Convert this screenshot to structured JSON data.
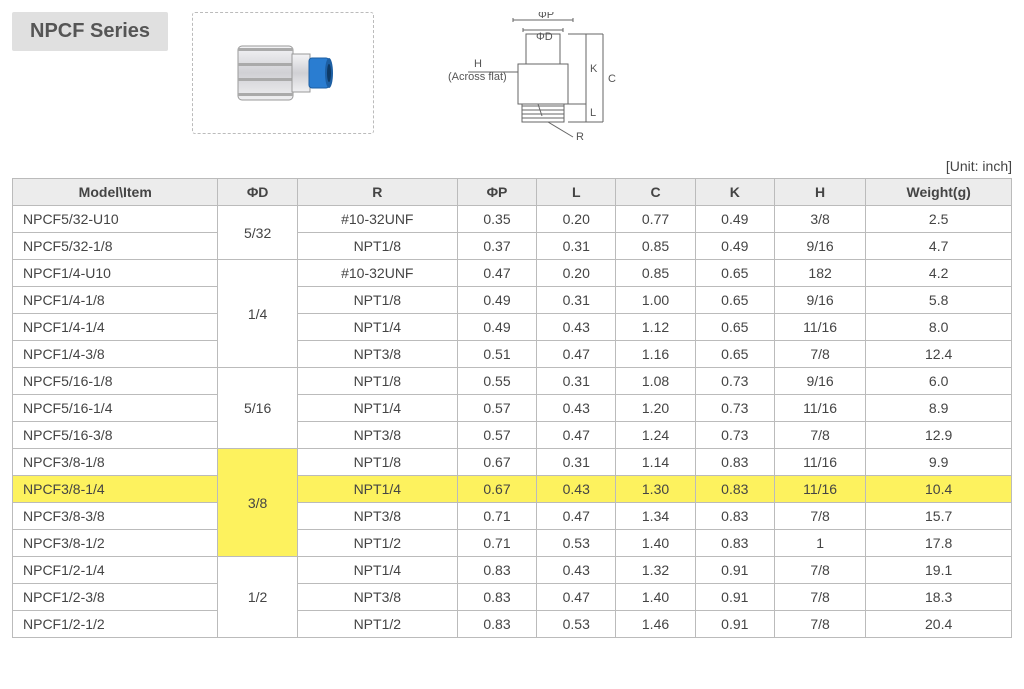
{
  "title": "NPCF Series",
  "unit_label": "[Unit: inch]",
  "diagram_labels": {
    "phiP": "ΦP",
    "phiD": "ΦD",
    "H": "H",
    "across_flat": "(Across flat)",
    "K": "K",
    "C": "C",
    "L": "L",
    "R": "R"
  },
  "columns": [
    "Model\\Item",
    "ΦD",
    "R",
    "ΦP",
    "L",
    "C",
    "K",
    "H",
    "Weight(g)"
  ],
  "groups": [
    {
      "phiD": "5/32",
      "rowspan": 2,
      "highlight": false,
      "rows": [
        {
          "model": "NPCF5/32-U10",
          "R": "#10-32UNF",
          "phiP": "0.35",
          "L": "0.20",
          "C": "0.77",
          "K": "0.49",
          "H": "3/8",
          "W": "2.5",
          "hl": false
        },
        {
          "model": "NPCF5/32-1/8",
          "R": "NPT1/8",
          "phiP": "0.37",
          "L": "0.31",
          "C": "0.85",
          "K": "0.49",
          "H": "9/16",
          "W": "4.7",
          "hl": false
        }
      ]
    },
    {
      "phiD": "1/4",
      "rowspan": 4,
      "highlight": false,
      "rows": [
        {
          "model": "NPCF1/4-U10",
          "R": "#10-32UNF",
          "phiP": "0.47",
          "L": "0.20",
          "C": "0.85",
          "K": "0.65",
          "H": "182",
          "W": "4.2",
          "hl": false
        },
        {
          "model": "NPCF1/4-1/8",
          "R": "NPT1/8",
          "phiP": "0.49",
          "L": "0.31",
          "C": "1.00",
          "K": "0.65",
          "H": "9/16",
          "W": "5.8",
          "hl": false
        },
        {
          "model": "NPCF1/4-1/4",
          "R": "NPT1/4",
          "phiP": "0.49",
          "L": "0.43",
          "C": "1.12",
          "K": "0.65",
          "H": "11/16",
          "W": "8.0",
          "hl": false
        },
        {
          "model": "NPCF1/4-3/8",
          "R": "NPT3/8",
          "phiP": "0.51",
          "L": "0.47",
          "C": "1.16",
          "K": "0.65",
          "H": "7/8",
          "W": "12.4",
          "hl": false
        }
      ]
    },
    {
      "phiD": "5/16",
      "rowspan": 3,
      "highlight": false,
      "rows": [
        {
          "model": "NPCF5/16-1/8",
          "R": "NPT1/8",
          "phiP": "0.55",
          "L": "0.31",
          "C": "1.08",
          "K": "0.73",
          "H": "9/16",
          "W": "6.0",
          "hl": false
        },
        {
          "model": "NPCF5/16-1/4",
          "R": "NPT1/4",
          "phiP": "0.57",
          "L": "0.43",
          "C": "1.20",
          "K": "0.73",
          "H": "11/16",
          "W": "8.9",
          "hl": false
        },
        {
          "model": "NPCF5/16-3/8",
          "R": "NPT3/8",
          "phiP": "0.57",
          "L": "0.47",
          "C": "1.24",
          "K": "0.73",
          "H": "7/8",
          "W": "12.9",
          "hl": false
        }
      ]
    },
    {
      "phiD": "3/8",
      "rowspan": 4,
      "highlight": true,
      "rows": [
        {
          "model": "NPCF3/8-1/8",
          "R": "NPT1/8",
          "phiP": "0.67",
          "L": "0.31",
          "C": "1.14",
          "K": "0.83",
          "H": "11/16",
          "W": "9.9",
          "hl": false
        },
        {
          "model": "NPCF3/8-1/4",
          "R": "NPT1/4",
          "phiP": "0.67",
          "L": "0.43",
          "C": "1.30",
          "K": "0.83",
          "H": "11/16",
          "W": "10.4",
          "hl": true
        },
        {
          "model": "NPCF3/8-3/8",
          "R": "NPT3/8",
          "phiP": "0.71",
          "L": "0.47",
          "C": "1.34",
          "K": "0.83",
          "H": "7/8",
          "W": "15.7",
          "hl": false
        },
        {
          "model": "NPCF3/8-1/2",
          "R": "NPT1/2",
          "phiP": "0.71",
          "L": "0.53",
          "C": "1.40",
          "K": "0.83",
          "H": "1",
          "W": "17.8",
          "hl": false
        }
      ]
    },
    {
      "phiD": "1/2",
      "rowspan": 3,
      "highlight": false,
      "rows": [
        {
          "model": "NPCF1/2-1/4",
          "R": "NPT1/4",
          "phiP": "0.83",
          "L": "0.43",
          "C": "1.32",
          "K": "0.91",
          "H": "7/8",
          "W": "19.1",
          "hl": false
        },
        {
          "model": "NPCF1/2-3/8",
          "R": "NPT3/8",
          "phiP": "0.83",
          "L": "0.47",
          "C": "1.40",
          "K": "0.91",
          "H": "7/8",
          "W": "18.3",
          "hl": false
        },
        {
          "model": "NPCF1/2-1/2",
          "R": "NPT1/2",
          "phiP": "0.83",
          "L": "0.53",
          "C": "1.46",
          "K": "0.91",
          "H": "7/8",
          "W": "20.4",
          "hl": false
        }
      ]
    }
  ],
  "colors": {
    "highlight": "#fdf25e",
    "header_bg": "#ececec",
    "border": "#bbbbbb",
    "title_bg": "#e0e0e0",
    "text": "#444444",
    "fitting_body": "#e8e8ea",
    "fitting_shadow": "#b8b8bc",
    "fitting_blue": "#2a7dd1"
  }
}
